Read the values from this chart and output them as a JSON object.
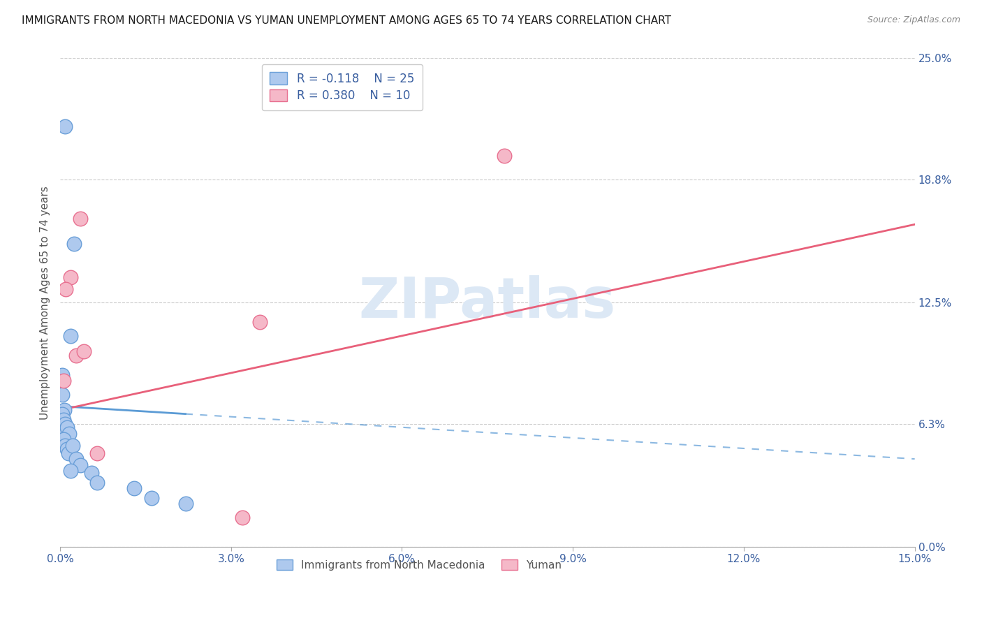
{
  "title": "IMMIGRANTS FROM NORTH MACEDONIA VS YUMAN UNEMPLOYMENT AMONG AGES 65 TO 74 YEARS CORRELATION CHART",
  "source": "Source: ZipAtlas.com",
  "xlabel_vals": [
    0.0,
    3.0,
    6.0,
    9.0,
    12.0,
    15.0
  ],
  "ylabel_vals": [
    0.0,
    6.3,
    12.5,
    18.8,
    25.0
  ],
  "ylabel_label": "Unemployment Among Ages 65 to 74 years",
  "xlim": [
    0.0,
    15.0
  ],
  "ylim": [
    0.0,
    25.0
  ],
  "blue_R": "-0.118",
  "blue_N": "25",
  "pink_R": "0.380",
  "pink_N": "10",
  "blue_color": "#aec9ee",
  "pink_color": "#f5b8c8",
  "blue_edge_color": "#6a9fd8",
  "pink_edge_color": "#e87090",
  "blue_line_color": "#5b9bd5",
  "pink_line_color": "#e8607a",
  "blue_scatter": [
    [
      0.08,
      21.5
    ],
    [
      0.25,
      15.5
    ],
    [
      0.18,
      10.8
    ],
    [
      0.04,
      8.8
    ],
    [
      0.04,
      7.8
    ],
    [
      0.07,
      7.0
    ],
    [
      0.04,
      6.8
    ],
    [
      0.06,
      6.5
    ],
    [
      0.08,
      6.3
    ],
    [
      0.1,
      6.0
    ],
    [
      0.12,
      6.1
    ],
    [
      0.16,
      5.8
    ],
    [
      0.06,
      5.5
    ],
    [
      0.08,
      5.2
    ],
    [
      0.12,
      5.0
    ],
    [
      0.15,
      4.8
    ],
    [
      0.22,
      5.2
    ],
    [
      0.28,
      4.5
    ],
    [
      0.35,
      4.2
    ],
    [
      0.18,
      3.9
    ],
    [
      0.55,
      3.8
    ],
    [
      0.65,
      3.3
    ],
    [
      1.3,
      3.0
    ],
    [
      1.6,
      2.5
    ],
    [
      2.2,
      2.2
    ]
  ],
  "pink_scatter": [
    [
      0.06,
      8.5
    ],
    [
      0.18,
      13.8
    ],
    [
      0.35,
      16.8
    ],
    [
      0.28,
      9.8
    ],
    [
      0.1,
      13.2
    ],
    [
      0.42,
      10.0
    ],
    [
      0.65,
      4.8
    ],
    [
      3.2,
      1.5
    ],
    [
      3.5,
      11.5
    ],
    [
      7.8,
      20.0
    ]
  ],
  "blue_line_x": [
    0.0,
    15.0
  ],
  "blue_line_y": [
    7.2,
    4.5
  ],
  "blue_dash_start": 2.2,
  "pink_line_x": [
    0.0,
    15.0
  ],
  "pink_line_y": [
    7.0,
    16.5
  ],
  "watermark_text": "ZIPatlas",
  "watermark_color": "#dce8f5",
  "title_color": "#1a1a1a",
  "source_color": "#888888",
  "axis_color": "#3a5fa0",
  "ylabel_color": "#555555",
  "grid_color": "#cccccc",
  "legend_label_color": "#3a5fa0"
}
